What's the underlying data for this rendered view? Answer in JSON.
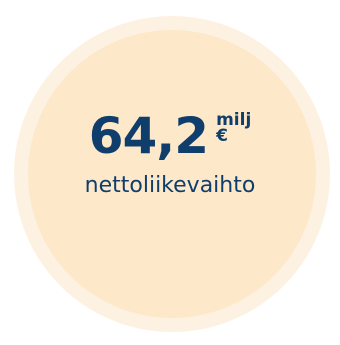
{
  "stat": {
    "value": "64,2",
    "unit_line1": "milj",
    "unit_line2": "€",
    "label": "nettoliikevaihto"
  },
  "colors": {
    "outer_ring": "#fdf1e2",
    "inner_circle": "#fde8c9",
    "text": "#0f3e6c"
  }
}
